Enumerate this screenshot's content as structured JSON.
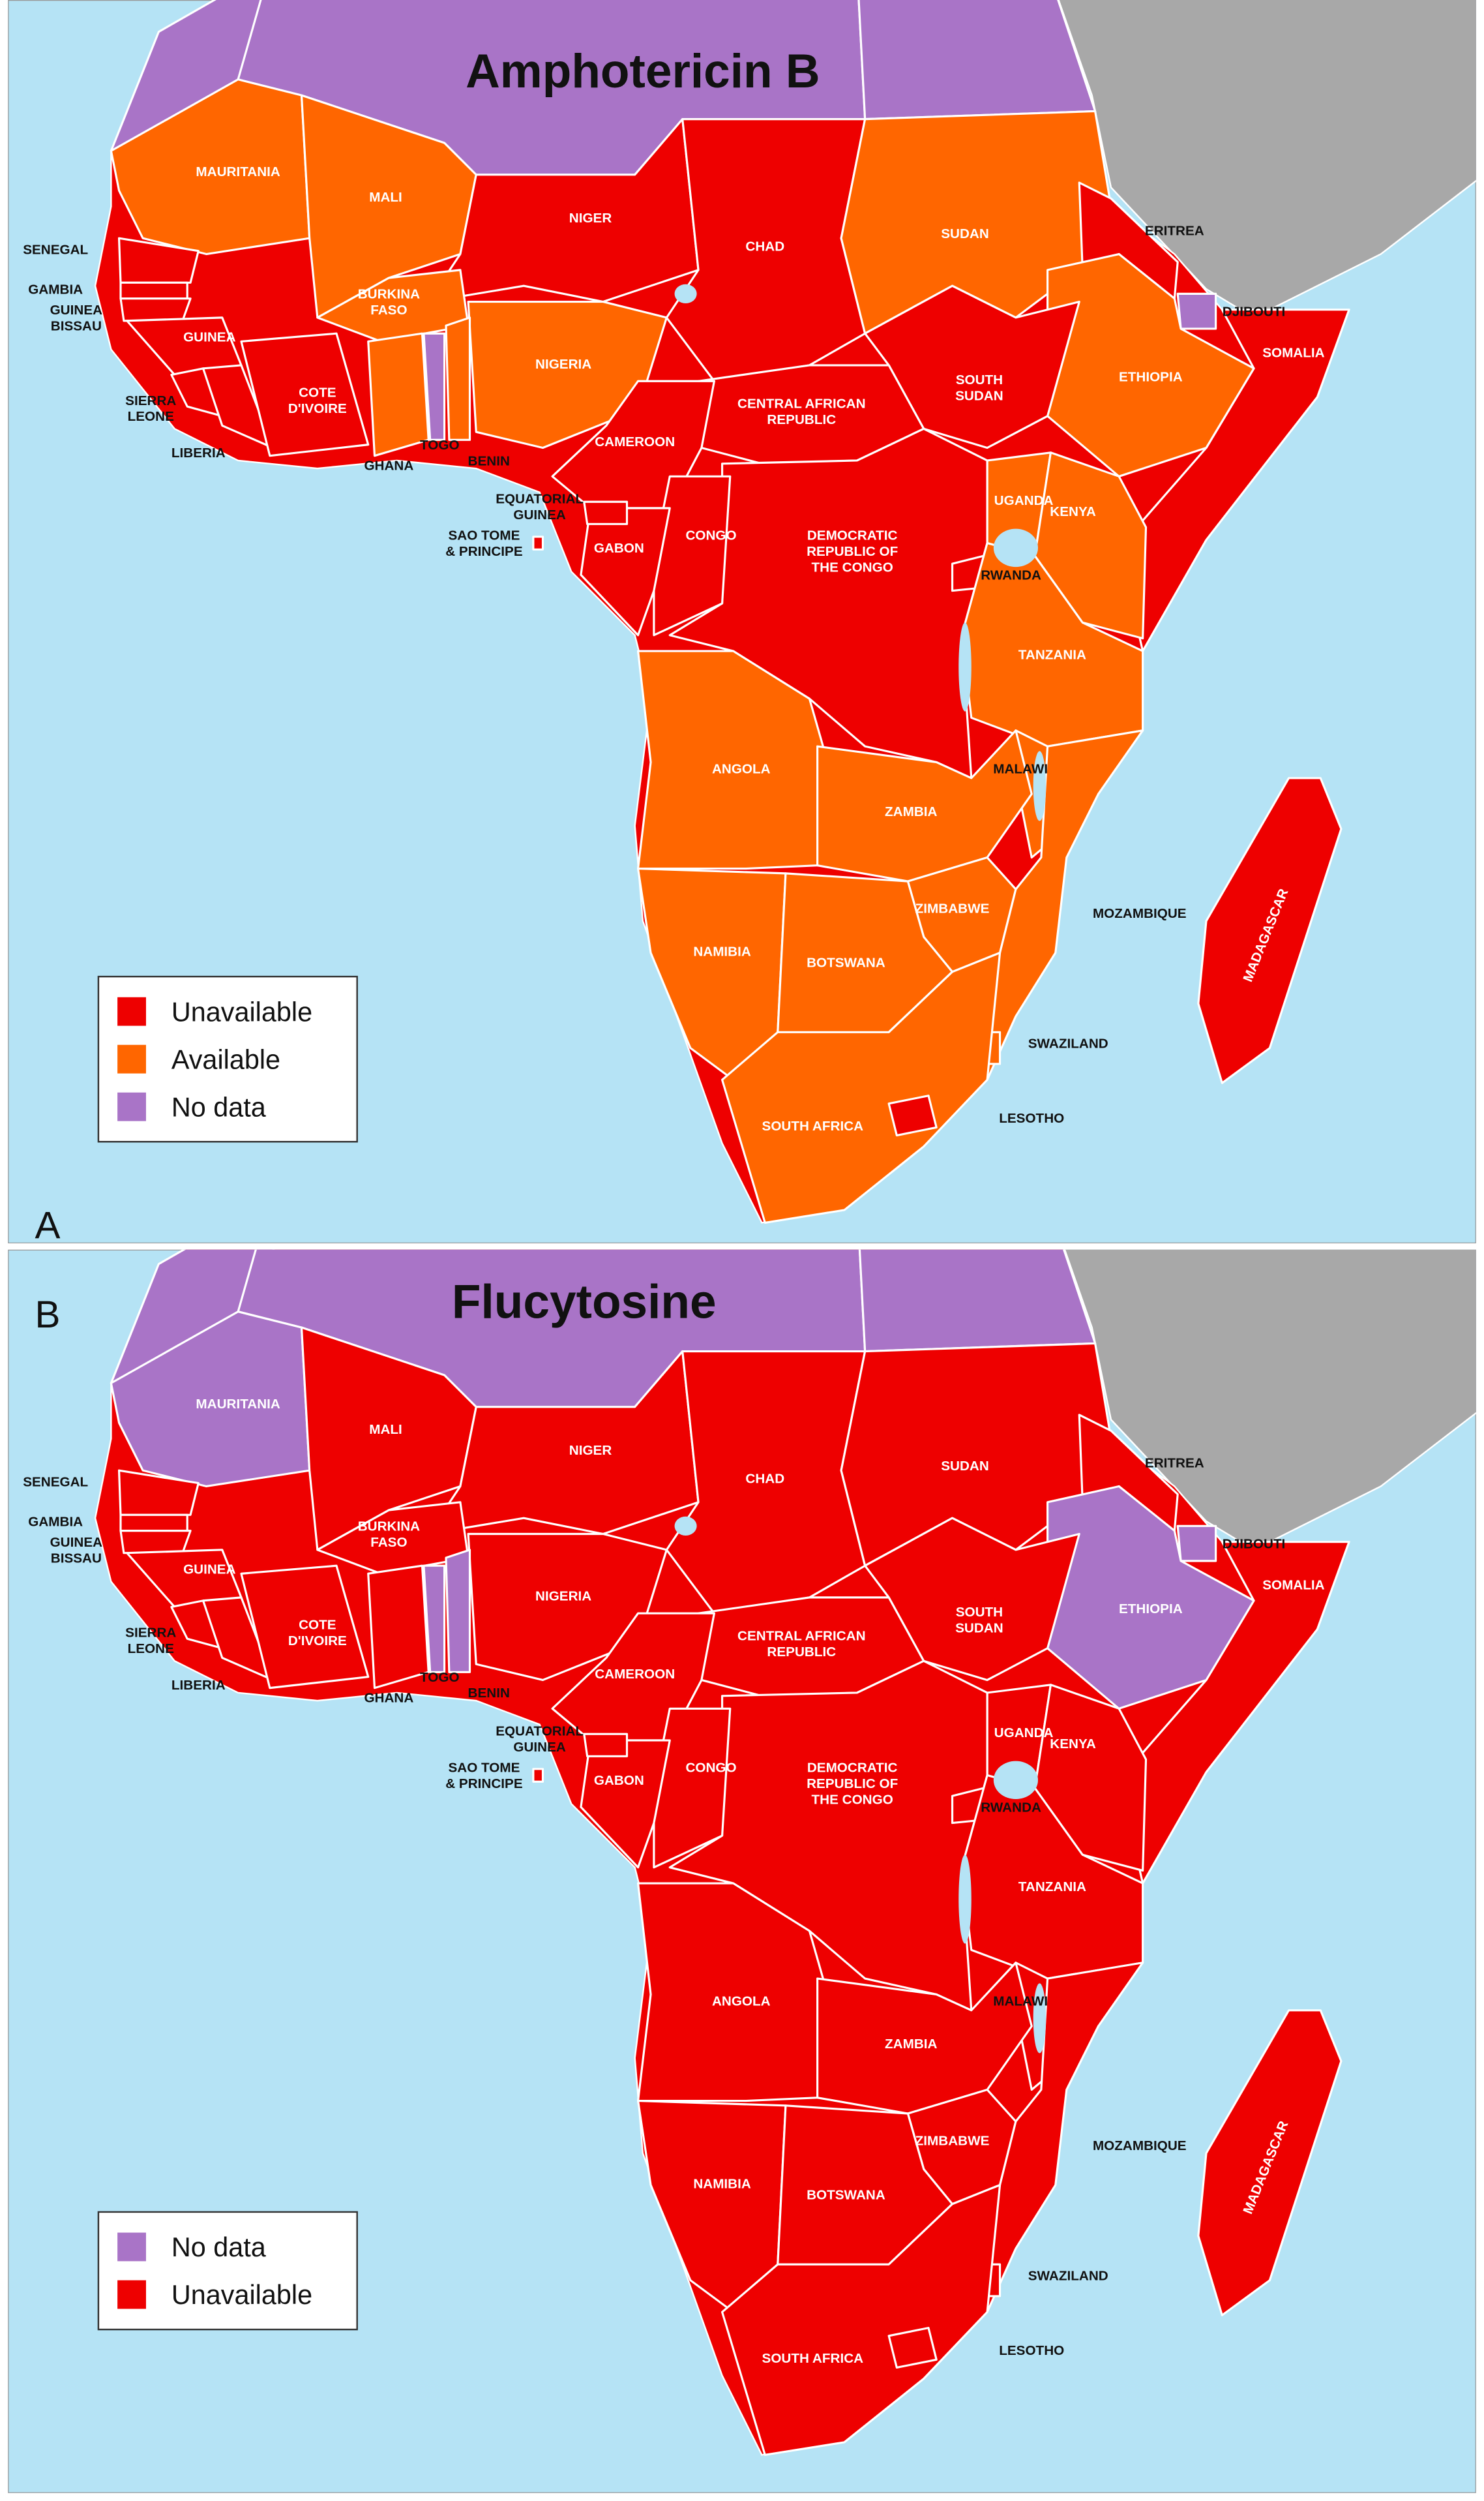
{
  "panels": [
    {
      "letter": "A",
      "title": "Amphotericin B",
      "legend": [
        {
          "label": "Unavailable",
          "color": "#ee0000"
        },
        {
          "label": "Available",
          "color": "#ff6600"
        },
        {
          "label": "No data",
          "color": "#a974c7"
        }
      ],
      "countries": [
        {
          "name": [
            "MAURITANIA"
          ],
          "color": "#ff6600"
        },
        {
          "name": [
            "MALI"
          ],
          "color": "#ff6600"
        },
        {
          "name": [
            "NIGER"
          ],
          "color": "#ee0000"
        },
        {
          "name": [
            "CHAD"
          ],
          "color": "#ee0000"
        },
        {
          "name": [
            "SUDAN"
          ],
          "color": "#ff6600"
        },
        {
          "name": [
            "ERITREA"
          ],
          "color": "#ee0000"
        },
        {
          "name": [
            "DJIBOUTI"
          ],
          "color": "#a974c7"
        },
        {
          "name": [
            "SOMALIA"
          ],
          "color": "#ee0000"
        },
        {
          "name": [
            "ETHIOPIA"
          ],
          "color": "#ff6600"
        },
        {
          "name": [
            "SOUTH",
            "SUDAN"
          ],
          "color": "#ee0000"
        },
        {
          "name": [
            "CENTRAL AFRICAN",
            "REPUBLIC"
          ],
          "color": "#ee0000"
        },
        {
          "name": [
            "NIGERIA"
          ],
          "color": "#ff6600"
        },
        {
          "name": [
            "BURKINA",
            "FASO"
          ],
          "color": "#ff6600"
        },
        {
          "name": [
            "CAMEROON"
          ],
          "color": "#ee0000"
        },
        {
          "name": [
            "UGANDA"
          ],
          "color": "#ff6600"
        },
        {
          "name": [
            "KENYA"
          ],
          "color": "#ff6600"
        },
        {
          "name": [
            "DEMOCRATIC",
            "REPUBLIC OF",
            "THE CONGO"
          ],
          "color": "#ee0000"
        },
        {
          "name": [
            "RWANDA"
          ],
          "color": "#ee0000"
        },
        {
          "name": [
            "TANZANIA"
          ],
          "color": "#ff6600"
        },
        {
          "name": [
            "CONGO"
          ],
          "color": "#ee0000"
        },
        {
          "name": [
            "GABON"
          ],
          "color": "#ee0000"
        },
        {
          "name": [
            "EQUATORIAL",
            "GUINEA"
          ],
          "color": "#ee0000"
        },
        {
          "name": [
            "SAO TOME",
            "& PRINCIPE"
          ],
          "color": "#ee0000"
        },
        {
          "name": [
            "ANGOLA"
          ],
          "color": "#ff6600"
        },
        {
          "name": [
            "MALAWI"
          ],
          "color": "#ff6600"
        },
        {
          "name": [
            "ZAMBIA"
          ],
          "color": "#ff6600"
        },
        {
          "name": [
            "ZIMBABWE"
          ],
          "color": "#ff6600"
        },
        {
          "name": [
            "MOZAMBIQUE"
          ],
          "color": "#ff6600"
        },
        {
          "name": [
            "NAMIBIA"
          ],
          "color": "#ff6600"
        },
        {
          "name": [
            "BOTSWANA"
          ],
          "color": "#ff6600"
        },
        {
          "name": [
            "SWAZILAND"
          ],
          "color": "#ff6600"
        },
        {
          "name": [
            "SOUTH AFRICA"
          ],
          "color": "#ff6600"
        },
        {
          "name": [
            "LESOTHO"
          ],
          "color": "#ee0000"
        },
        {
          "name": [
            "MADAGASCAR"
          ],
          "color": "#ee0000"
        },
        {
          "name": [
            "SENEGAL"
          ],
          "color": "#ee0000"
        },
        {
          "name": [
            "GAMBIA"
          ],
          "color": "#ee0000"
        },
        {
          "name": [
            "GUINEA",
            "BISSAU"
          ],
          "color": "#ee0000"
        },
        {
          "name": [
            "GUINEA"
          ],
          "color": "#ee0000"
        },
        {
          "name": [
            "SIERRA",
            "LEONE"
          ],
          "color": "#ee0000"
        },
        {
          "name": [
            "LIBERIA"
          ],
          "color": "#ee0000"
        },
        {
          "name": [
            "COTE",
            "D'IVOIRE"
          ],
          "color": "#ee0000"
        },
        {
          "name": [
            "GHANA"
          ],
          "color": "#ff6600"
        },
        {
          "name": [
            "TOGO"
          ],
          "color": "#a974c7"
        },
        {
          "name": [
            "BENIN"
          ],
          "color": "#ff6600"
        }
      ]
    },
    {
      "letter": "B",
      "title": "Flucytosine",
      "legend": [
        {
          "label": "No data",
          "color": "#a974c7"
        },
        {
          "label": "Unavailable",
          "color": "#ee0000"
        }
      ],
      "countries": [
        {
          "name": [
            "MAURITANIA"
          ],
          "color": "#a974c7"
        },
        {
          "name": [
            "MALI"
          ],
          "color": "#ee0000"
        },
        {
          "name": [
            "NIGER"
          ],
          "color": "#ee0000"
        },
        {
          "name": [
            "CHAD"
          ],
          "color": "#ee0000"
        },
        {
          "name": [
            "SUDAN"
          ],
          "color": "#ee0000"
        },
        {
          "name": [
            "ERITREA"
          ],
          "color": "#ee0000"
        },
        {
          "name": [
            "DJIBOUTI"
          ],
          "color": "#a974c7"
        },
        {
          "name": [
            "SOMALIA"
          ],
          "color": "#ee0000"
        },
        {
          "name": [
            "ETHIOPIA"
          ],
          "color": "#a974c7"
        },
        {
          "name": [
            "SOUTH",
            "SUDAN"
          ],
          "color": "#ee0000"
        },
        {
          "name": [
            "CENTRAL AFRICAN",
            "REPUBLIC"
          ],
          "color": "#ee0000"
        },
        {
          "name": [
            "NIGERIA"
          ],
          "color": "#ee0000"
        },
        {
          "name": [
            "BURKINA",
            "FASO"
          ],
          "color": "#ee0000"
        },
        {
          "name": [
            "CAMEROON"
          ],
          "color": "#ee0000"
        },
        {
          "name": [
            "UGANDA"
          ],
          "color": "#ee0000"
        },
        {
          "name": [
            "KENYA"
          ],
          "color": "#ee0000"
        },
        {
          "name": [
            "DEMOCRATIC",
            "REPUBLIC OF",
            "THE CONGO"
          ],
          "color": "#ee0000"
        },
        {
          "name": [
            "RWANDA"
          ],
          "color": "#ee0000"
        },
        {
          "name": [
            "TANZANIA"
          ],
          "color": "#ee0000"
        },
        {
          "name": [
            "CONGO"
          ],
          "color": "#ee0000"
        },
        {
          "name": [
            "GABON"
          ],
          "color": "#ee0000"
        },
        {
          "name": [
            "EQUATORIAL",
            "GUINEA"
          ],
          "color": "#ee0000"
        },
        {
          "name": [
            "SAO TOME",
            "& PRINCIPE"
          ],
          "color": "#ee0000"
        },
        {
          "name": [
            "ANGOLA"
          ],
          "color": "#ee0000"
        },
        {
          "name": [
            "MALAWI"
          ],
          "color": "#ee0000"
        },
        {
          "name": [
            "ZAMBIA"
          ],
          "color": "#ee0000"
        },
        {
          "name": [
            "ZIMBABWE"
          ],
          "color": "#ee0000"
        },
        {
          "name": [
            "MOZAMBIQUE"
          ],
          "color": "#ee0000"
        },
        {
          "name": [
            "NAMIBIA"
          ],
          "color": "#ee0000"
        },
        {
          "name": [
            "BOTSWANA"
          ],
          "color": "#ee0000"
        },
        {
          "name": [
            "SWAZILAND"
          ],
          "color": "#ee0000"
        },
        {
          "name": [
            "SOUTH AFRICA"
          ],
          "color": "#ee0000"
        },
        {
          "name": [
            "LESOTHO"
          ],
          "color": "#ee0000"
        },
        {
          "name": [
            "MADAGASCAR"
          ],
          "color": "#ee0000"
        },
        {
          "name": [
            "SENEGAL"
          ],
          "color": "#ee0000"
        },
        {
          "name": [
            "GAMBIA"
          ],
          "color": "#ee0000"
        },
        {
          "name": [
            "GUINEA",
            "BISSAU"
          ],
          "color": "#ee0000"
        },
        {
          "name": [
            "GUINEA"
          ],
          "color": "#ee0000"
        },
        {
          "name": [
            "SIERRA",
            "LEONE"
          ],
          "color": "#ee0000"
        },
        {
          "name": [
            "LIBERIA"
          ],
          "color": "#ee0000"
        },
        {
          "name": [
            "COTE",
            "D'IVOIRE"
          ],
          "color": "#ee0000"
        },
        {
          "name": [
            "GHANA"
          ],
          "color": "#ee0000"
        },
        {
          "name": [
            "TOGO"
          ],
          "color": "#a974c7"
        },
        {
          "name": [
            "BENIN"
          ],
          "color": "#a974c7"
        }
      ]
    }
  ]
}
